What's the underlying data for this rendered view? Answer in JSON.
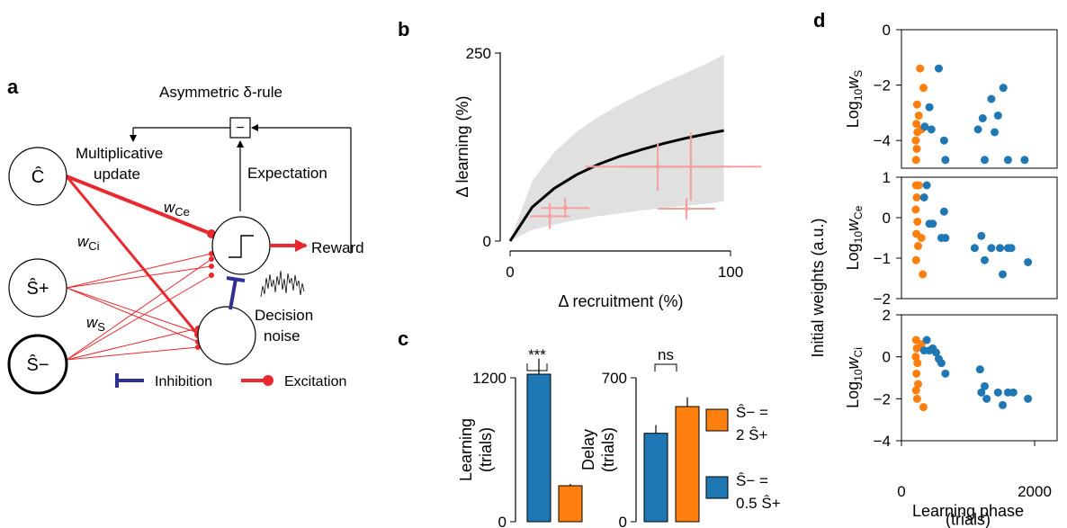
{
  "colors": {
    "red": "#e8292f",
    "blue": "#1f77b4",
    "orange": "#ff7f0e",
    "navy": "#2e3192",
    "band": "#e0e0e0",
    "pink": "#f4a0a0"
  },
  "panels": {
    "a": "a",
    "b": "b",
    "c": "c",
    "d": "d"
  },
  "model": {
    "rule": "Asymmetric δ-rule",
    "mult1": "Multiplicative",
    "mult2": "update",
    "expectation": "Expectation",
    "reward": "Reward",
    "decision1": "Decision",
    "decision2": "noise",
    "node_c": "Ĉ",
    "node_sp": "Ŝ+",
    "node_sm": "Ŝ−",
    "minus": "−",
    "w_ce_main": "w",
    "w_ce_sub": "Ce",
    "w_ci_main": "w",
    "w_ci_sub": "Ci",
    "w_s_main": "w",
    "w_s_sub": "S",
    "inhibition": "Inhibition",
    "excitation": "Excitation"
  },
  "chart_data": [
    {
      "panel": "b",
      "type": "scatter",
      "xlabel": "Δ recruitment (%)",
      "ylabel": "Δ learning (%)",
      "xlim": [
        0,
        110
      ],
      "ylim": [
        0,
        250
      ],
      "xticks": [
        "0",
        "100"
      ],
      "yticks": [
        "0",
        "250"
      ],
      "curve": {
        "x": [
          0,
          10,
          20,
          30,
          40,
          50,
          60,
          70,
          80,
          90,
          97
        ],
        "y": [
          0,
          45,
          70,
          88,
          102,
          113,
          122,
          130,
          137,
          143,
          147
        ]
      },
      "band": {
        "x": [
          0,
          10,
          20,
          30,
          40,
          50,
          60,
          70,
          80,
          90,
          97
        ],
        "lower": [
          0,
          15,
          22,
          28,
          33,
          37,
          41,
          44,
          47,
          50,
          53
        ],
        "upper": [
          0,
          80,
          118,
          145,
          165,
          182,
          197,
          211,
          224,
          237,
          248
        ]
      },
      "points": [
        {
          "x": 18,
          "y": 33,
          "xerr": 9,
          "yerr": 17
        },
        {
          "x": 25,
          "y": 44,
          "xerr": 11,
          "yerr": 13
        },
        {
          "x": 67,
          "y": 99,
          "xerr": 33,
          "yerr": 32
        },
        {
          "x": 80,
          "y": 43,
          "xerr": 13,
          "yerr": 14
        },
        {
          "x": 82,
          "y": 99,
          "xerr": 32,
          "yerr": 45
        }
      ]
    },
    {
      "panel": "c-learning",
      "type": "bar",
      "ylabel": [
        "Learning",
        "(trials)"
      ],
      "ylim": [
        0,
        1200
      ],
      "yticks": [
        "0",
        "1200"
      ],
      "values": [
        1230,
        300
      ],
      "errors": [
        130,
        15
      ],
      "colors": [
        "#1f77b4",
        "#ff7f0e"
      ],
      "sig": "***"
    },
    {
      "panel": "c-delay",
      "type": "bar",
      "ylabel": [
        "Delay",
        "(trials)"
      ],
      "ylim": [
        0,
        700
      ],
      "yticks": [
        "0",
        "700"
      ],
      "values": [
        430,
        560
      ],
      "errors": [
        40,
        45
      ],
      "colors": [
        "#1f77b4",
        "#ff7f0e"
      ],
      "sig": "ns",
      "legend": [
        {
          "line1": "Ŝ− =",
          "line2": "2 Ŝ+",
          "color": "#ff7f0e"
        },
        {
          "line1": "Ŝ− =",
          "line2": "0.5 Ŝ+",
          "color": "#1f77b4"
        }
      ]
    },
    {
      "panel": "d",
      "type": "scatter",
      "shared_ylabel": "Initial weights (a.u.)",
      "xlabel": "Learning phase",
      "xlabel2": "(trials)",
      "xlim": [
        0,
        2000
      ],
      "xticks": [
        "0",
        "2000"
      ],
      "subplots": [
        {
          "ylabel_main": "Log",
          "ylabel_sub": "10",
          "ylabel_w": "w",
          "ylabel_wsub": "S",
          "ylim": [
            -5,
            0
          ],
          "yticks": [
            "0",
            "−2",
            "−4"
          ],
          "ytickvals": [
            0,
            -2,
            -4
          ],
          "orange": [
            {
              "x": 220,
              "y": -4.7
            },
            {
              "x": 230,
              "y": -4.3
            },
            {
              "x": 215,
              "y": -4
            },
            {
              "x": 240,
              "y": -3.7
            },
            {
              "x": 225,
              "y": -3.4
            },
            {
              "x": 260,
              "y": -3.1
            },
            {
              "x": 235,
              "y": -2.7
            },
            {
              "x": 330,
              "y": -2.1
            },
            {
              "x": 280,
              "y": -1.4
            },
            {
              "x": 300,
              "y": -3.6
            }
          ],
          "blue": [
            {
              "x": 350,
              "y": -3.5
            },
            {
              "x": 420,
              "y": -2.8
            },
            {
              "x": 450,
              "y": -3.6
            },
            {
              "x": 560,
              "y": -1.4
            },
            {
              "x": 640,
              "y": -4
            },
            {
              "x": 660,
              "y": -4.7
            },
            {
              "x": 1150,
              "y": -3.6
            },
            {
              "x": 1220,
              "y": -3.2
            },
            {
              "x": 1250,
              "y": -4.7
            },
            {
              "x": 1350,
              "y": -2.5
            },
            {
              "x": 1400,
              "y": -3.7
            },
            {
              "x": 1450,
              "y": -3.1
            },
            {
              "x": 1530,
              "y": -2.1
            },
            {
              "x": 1600,
              "y": -4.7
            },
            {
              "x": 1850,
              "y": -4.7
            }
          ]
        },
        {
          "ylabel_main": "Log",
          "ylabel_sub": "10",
          "ylabel_w": "w",
          "ylabel_wsub": "Ce",
          "ylim": [
            -2,
            1
          ],
          "yticks": [
            "1",
            "0",
            "−1",
            "−2"
          ],
          "ytickvals": [
            1,
            0,
            -1,
            -2
          ],
          "orange": [
            {
              "x": 220,
              "y": 0.8
            },
            {
              "x": 230,
              "y": 0.5
            },
            {
              "x": 215,
              "y": 0.2
            },
            {
              "x": 240,
              "y": -0.1
            },
            {
              "x": 225,
              "y": -0.4
            },
            {
              "x": 250,
              "y": -0.7
            },
            {
              "x": 220,
              "y": -1.05
            },
            {
              "x": 320,
              "y": -1.4
            },
            {
              "x": 260,
              "y": 0.8
            },
            {
              "x": 300,
              "y": -0.5
            }
          ],
          "blue": [
            {
              "x": 340,
              "y": 0.5
            },
            {
              "x": 380,
              "y": 0.8
            },
            {
              "x": 420,
              "y": -0.15
            },
            {
              "x": 470,
              "y": -0.15
            },
            {
              "x": 600,
              "y": -0.5
            },
            {
              "x": 640,
              "y": 0.15
            },
            {
              "x": 660,
              "y": -0.5
            },
            {
              "x": 1100,
              "y": -0.75
            },
            {
              "x": 1200,
              "y": -0.45
            },
            {
              "x": 1250,
              "y": -1.05
            },
            {
              "x": 1350,
              "y": -0.75
            },
            {
              "x": 1480,
              "y": -0.75
            },
            {
              "x": 1520,
              "y": -1.4
            },
            {
              "x": 1600,
              "y": -0.75
            },
            {
              "x": 1650,
              "y": -0.75
            },
            {
              "x": 1900,
              "y": -1.1
            }
          ]
        },
        {
          "ylabel_main": "Log",
          "ylabel_sub": "10",
          "ylabel_w": "w",
          "ylabel_wsub": "Ci",
          "ylim": [
            -4,
            2
          ],
          "yticks": [
            "2",
            "0",
            "−2",
            "−4"
          ],
          "ytickvals": [
            2,
            0,
            -2,
            -4
          ],
          "orange": [
            {
              "x": 220,
              "y": 0.8
            },
            {
              "x": 230,
              "y": 0.4
            },
            {
              "x": 215,
              "y": 0
            },
            {
              "x": 240,
              "y": -0.3
            },
            {
              "x": 225,
              "y": -0.8
            },
            {
              "x": 250,
              "y": -1.3
            },
            {
              "x": 220,
              "y": -1.6
            },
            {
              "x": 235,
              "y": -2
            },
            {
              "x": 330,
              "y": -2.4
            },
            {
              "x": 300,
              "y": 0.6
            }
          ],
          "blue": [
            {
              "x": 340,
              "y": 0.3
            },
            {
              "x": 380,
              "y": 0.8
            },
            {
              "x": 420,
              "y": 0.3
            },
            {
              "x": 470,
              "y": 0.4
            },
            {
              "x": 520,
              "y": 0.2
            },
            {
              "x": 560,
              "y": -0.1
            },
            {
              "x": 600,
              "y": -0.3
            },
            {
              "x": 660,
              "y": -0.8
            },
            {
              "x": 1180,
              "y": -0.6
            },
            {
              "x": 1200,
              "y": -1.7
            },
            {
              "x": 1250,
              "y": -1.4
            },
            {
              "x": 1280,
              "y": -2
            },
            {
              "x": 1450,
              "y": -1.7
            },
            {
              "x": 1520,
              "y": -2.3
            },
            {
              "x": 1600,
              "y": -1.7
            },
            {
              "x": 1680,
              "y": -1.7
            },
            {
              "x": 1900,
              "y": -2
            }
          ]
        }
      ]
    }
  ]
}
